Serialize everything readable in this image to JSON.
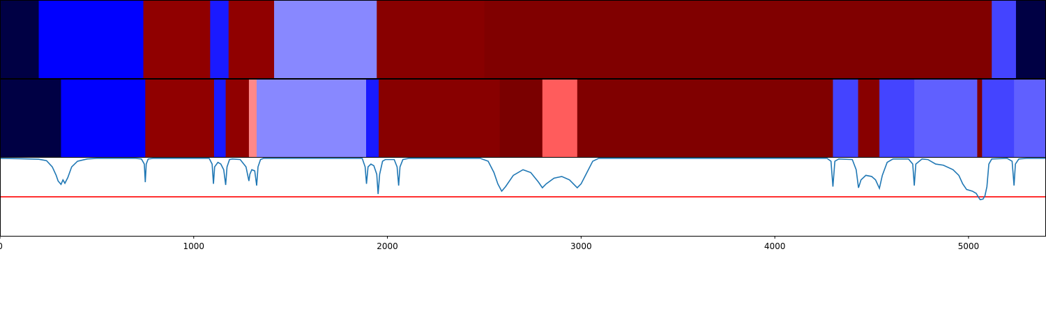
{
  "chart_data": {
    "type": "heatmap",
    "xlim": [
      0,
      5400
    ],
    "x_ticks": [
      0,
      1000,
      2000,
      3000,
      4000,
      5000
    ],
    "x_tick_labels": [
      "0",
      "1000",
      "2000",
      "3000",
      "4000",
      "5000"
    ],
    "grid": false,
    "legend": "none",
    "strip_top": [
      {
        "start": 0,
        "end": 200,
        "color": "#000044"
      },
      {
        "start": 200,
        "end": 740,
        "color": "#0000ff"
      },
      {
        "start": 740,
        "end": 1085,
        "color": "#900000"
      },
      {
        "start": 1085,
        "end": 1180,
        "color": "#1a1aff"
      },
      {
        "start": 1180,
        "end": 1415,
        "color": "#900000"
      },
      {
        "start": 1415,
        "end": 1945,
        "color": "#8888ff"
      },
      {
        "start": 1945,
        "end": 2500,
        "color": "#880000"
      },
      {
        "start": 2500,
        "end": 5120,
        "color": "#800000"
      },
      {
        "start": 5120,
        "end": 5245,
        "color": "#4444ff"
      },
      {
        "start": 5245,
        "end": 5400,
        "color": "#000044"
      }
    ],
    "strip_middle": [
      {
        "start": 0,
        "end": 315,
        "color": "#000044"
      },
      {
        "start": 315,
        "end": 750,
        "color": "#0000ff"
      },
      {
        "start": 750,
        "end": 1105,
        "color": "#900000"
      },
      {
        "start": 1105,
        "end": 1165,
        "color": "#1a1aff"
      },
      {
        "start": 1165,
        "end": 1285,
        "color": "#900000"
      },
      {
        "start": 1285,
        "end": 1325,
        "color": "#ff8888"
      },
      {
        "start": 1325,
        "end": 1890,
        "color": "#8888ff"
      },
      {
        "start": 1890,
        "end": 1955,
        "color": "#1a1aff"
      },
      {
        "start": 1955,
        "end": 2580,
        "color": "#880000"
      },
      {
        "start": 2580,
        "end": 2800,
        "color": "#7a0000"
      },
      {
        "start": 2800,
        "end": 2980,
        "color": "#ff5c5c"
      },
      {
        "start": 2980,
        "end": 4300,
        "color": "#800000"
      },
      {
        "start": 4300,
        "end": 4430,
        "color": "#4444ff"
      },
      {
        "start": 4430,
        "end": 4540,
        "color": "#880000"
      },
      {
        "start": 4540,
        "end": 4720,
        "color": "#4444ff"
      },
      {
        "start": 4720,
        "end": 5045,
        "color": "#6060ff"
      },
      {
        "start": 5045,
        "end": 5070,
        "color": "#800000"
      },
      {
        "start": 5070,
        "end": 5235,
        "color": "#4444ff"
      },
      {
        "start": 5235,
        "end": 5400,
        "color": "#6060ff"
      }
    ],
    "line": {
      "color": "#1f77b4",
      "ylim": [
        0,
        1
      ],
      "threshold": {
        "y": 0.32,
        "color": "#ff0000"
      },
      "points": [
        [
          0,
          1
        ],
        [
          100,
          0.995
        ],
        [
          200,
          0.985
        ],
        [
          240,
          0.96
        ],
        [
          270,
          0.85
        ],
        [
          290,
          0.7
        ],
        [
          300,
          0.6
        ],
        [
          315,
          0.54
        ],
        [
          325,
          0.62
        ],
        [
          335,
          0.56
        ],
        [
          350,
          0.66
        ],
        [
          370,
          0.85
        ],
        [
          400,
          0.95
        ],
        [
          450,
          0.99
        ],
        [
          500,
          1
        ],
        [
          700,
          1
        ],
        [
          730,
          0.99
        ],
        [
          745,
          0.9
        ],
        [
          750,
          0.58
        ],
        [
          755,
          0.9
        ],
        [
          765,
          0.99
        ],
        [
          790,
          1
        ],
        [
          1080,
          1
        ],
        [
          1095,
          0.9
        ],
        [
          1102,
          0.55
        ],
        [
          1108,
          0.85
        ],
        [
          1125,
          0.93
        ],
        [
          1140,
          0.9
        ],
        [
          1155,
          0.8
        ],
        [
          1165,
          0.53
        ],
        [
          1172,
          0.85
        ],
        [
          1185,
          0.98
        ],
        [
          1200,
          0.99
        ],
        [
          1240,
          0.98
        ],
        [
          1270,
          0.85
        ],
        [
          1285,
          0.6
        ],
        [
          1290,
          0.72
        ],
        [
          1300,
          0.8
        ],
        [
          1315,
          0.78
        ],
        [
          1325,
          0.52
        ],
        [
          1332,
          0.85
        ],
        [
          1345,
          0.98
        ],
        [
          1360,
          1
        ],
        [
          1870,
          1
        ],
        [
          1885,
          0.85
        ],
        [
          1892,
          0.55
        ],
        [
          1900,
          0.85
        ],
        [
          1915,
          0.9
        ],
        [
          1930,
          0.87
        ],
        [
          1945,
          0.72
        ],
        [
          1952,
          0.37
        ],
        [
          1960,
          0.72
        ],
        [
          1975,
          0.95
        ],
        [
          1990,
          0.98
        ],
        [
          2035,
          0.98
        ],
        [
          2050,
          0.85
        ],
        [
          2058,
          0.52
        ],
        [
          2065,
          0.85
        ],
        [
          2080,
          0.98
        ],
        [
          2110,
          1
        ],
        [
          2480,
          1
        ],
        [
          2520,
          0.95
        ],
        [
          2550,
          0.75
        ],
        [
          2570,
          0.55
        ],
        [
          2590,
          0.42
        ],
        [
          2610,
          0.5
        ],
        [
          2650,
          0.7
        ],
        [
          2700,
          0.8
        ],
        [
          2740,
          0.75
        ],
        [
          2780,
          0.58
        ],
        [
          2800,
          0.48
        ],
        [
          2820,
          0.55
        ],
        [
          2860,
          0.65
        ],
        [
          2900,
          0.68
        ],
        [
          2940,
          0.62
        ],
        [
          2980,
          0.48
        ],
        [
          3000,
          0.55
        ],
        [
          3030,
          0.75
        ],
        [
          3060,
          0.95
        ],
        [
          3090,
          1
        ],
        [
          4270,
          1
        ],
        [
          4290,
          0.95
        ],
        [
          4300,
          0.5
        ],
        [
          4310,
          0.95
        ],
        [
          4330,
          0.99
        ],
        [
          4400,
          0.98
        ],
        [
          4420,
          0.8
        ],
        [
          4432,
          0.48
        ],
        [
          4445,
          0.62
        ],
        [
          4470,
          0.7
        ],
        [
          4500,
          0.68
        ],
        [
          4520,
          0.62
        ],
        [
          4540,
          0.47
        ],
        [
          4555,
          0.7
        ],
        [
          4580,
          0.93
        ],
        [
          4610,
          0.99
        ],
        [
          4690,
          0.99
        ],
        [
          4712,
          0.9
        ],
        [
          4720,
          0.52
        ],
        [
          4728,
          0.9
        ],
        [
          4760,
          0.99
        ],
        [
          4790,
          0.98
        ],
        [
          4830,
          0.9
        ],
        [
          4870,
          0.88
        ],
        [
          4920,
          0.8
        ],
        [
          4950,
          0.7
        ],
        [
          4970,
          0.55
        ],
        [
          4990,
          0.45
        ],
        [
          5020,
          0.42
        ],
        [
          5040,
          0.38
        ],
        [
          5050,
          0.32
        ],
        [
          5060,
          0.27
        ],
        [
          5075,
          0.28
        ],
        [
          5085,
          0.34
        ],
        [
          5095,
          0.5
        ],
        [
          5105,
          0.9
        ],
        [
          5120,
          0.99
        ],
        [
          5200,
          1
        ],
        [
          5225,
          0.95
        ],
        [
          5235,
          0.52
        ],
        [
          5242,
          0.9
        ],
        [
          5260,
          0.99
        ],
        [
          5300,
          1
        ],
        [
          5400,
          1
        ]
      ]
    }
  }
}
